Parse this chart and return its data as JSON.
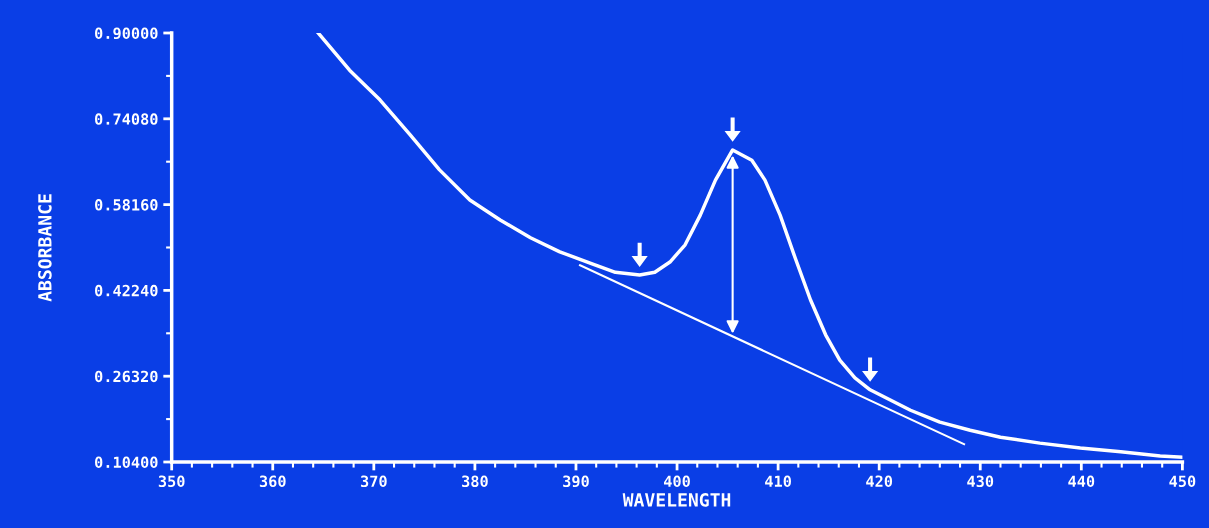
{
  "chart_data": {
    "type": "line",
    "xlabel": "WAVELENGTH",
    "ylabel": "ABSORBANCE",
    "grid": false,
    "legend": false,
    "marker": "none",
    "line_style": "solid",
    "xlim": [
      350,
      450
    ],
    "xticks": [
      350,
      360,
      370,
      380,
      390,
      400,
      410,
      420,
      430,
      440,
      450
    ],
    "ylim": [
      0.104,
      0.9
    ],
    "yticks": [
      {
        "value": 0.104,
        "label": "0.10400"
      },
      {
        "value": 0.2632,
        "label": "0.26320"
      },
      {
        "value": 0.4224,
        "label": "0.42240"
      },
      {
        "value": 0.5816,
        "label": "0.58160"
      },
      {
        "value": 0.7408,
        "label": "0.74080"
      },
      {
        "value": 0.9,
        "label": "0.90000"
      }
    ],
    "series": [
      {
        "color": "#ffffff",
        "x": [
          364.5,
          367.6,
          370.6,
          373.6,
          376.5,
          379.5,
          382.5,
          385.5,
          388.4,
          391.4,
          393.9,
          396.3,
          397.8,
          399.3,
          400.8,
          402.3,
          403.8,
          405.5,
          407.4,
          408.7,
          410.2,
          411.7,
          413.2,
          414.7,
          416.1,
          417.6,
          419.1,
          421.1,
          423.1,
          426.0,
          429.0,
          432.0,
          435.9,
          439.9,
          443.9,
          447.8,
          450.0
        ],
        "values": [
          0.9,
          0.831,
          0.776,
          0.711,
          0.646,
          0.59,
          0.553,
          0.52,
          0.494,
          0.473,
          0.456,
          0.451,
          0.456,
          0.475,
          0.507,
          0.562,
          0.627,
          0.683,
          0.664,
          0.627,
          0.562,
          0.482,
          0.405,
          0.34,
          0.293,
          0.26,
          0.238,
          0.219,
          0.2,
          0.178,
          0.163,
          0.15,
          0.139,
          0.13,
          0.123,
          0.115,
          0.113
        ]
      },
      {
        "type": "line",
        "color": "#ffffff",
        "x": [
          390.4,
          428.4
        ],
        "values": [
          0.469,
          0.137
        ]
      }
    ]
  }
}
